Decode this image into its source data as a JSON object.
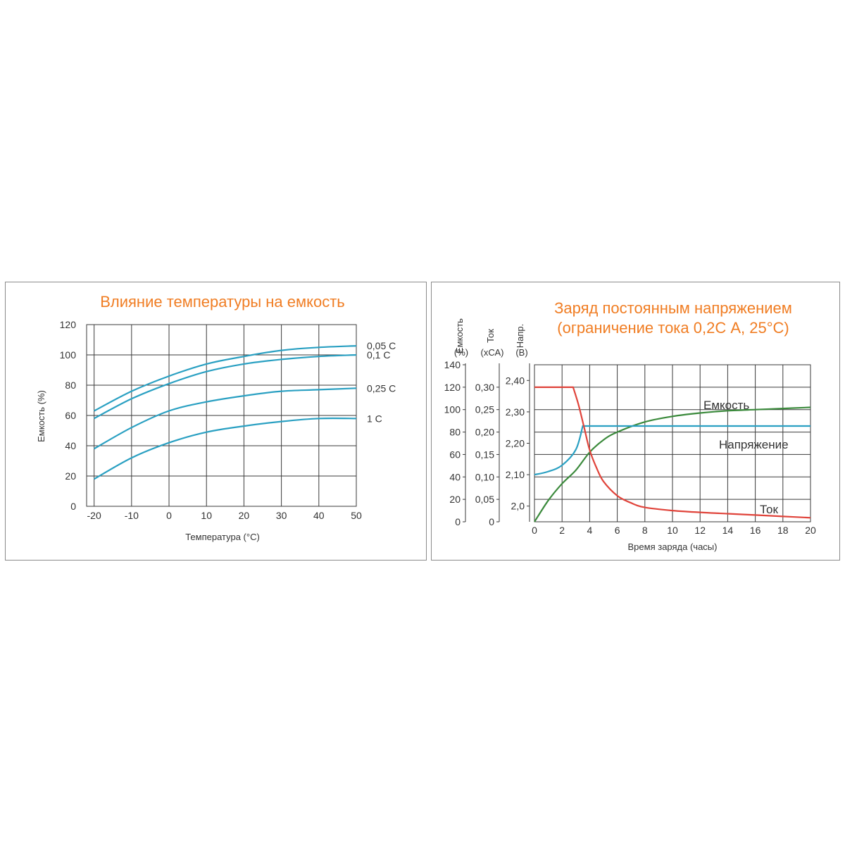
{
  "chart_data": [
    {
      "type": "line",
      "title": "Влияние температуры на емкость",
      "xlabel": "Температура (°С)",
      "ylabel": "Емкость (%)",
      "xlim": [
        -22,
        50
      ],
      "ylim": [
        0,
        120
      ],
      "x_ticks": [
        "-20",
        "-10",
        "0",
        "10",
        "20",
        "30",
        "40",
        "50"
      ],
      "y_ticks": [
        "0",
        "20",
        "40",
        "60",
        "80",
        "100",
        "120"
      ],
      "grid": true,
      "series": [
        {
          "name": "0,05 C",
          "x": [
            -20,
            -10,
            0,
            10,
            20,
            30,
            40,
            50
          ],
          "values": [
            63,
            76,
            86,
            94,
            99,
            103,
            105,
            106
          ]
        },
        {
          "name": "0,1 C",
          "x": [
            -20,
            -10,
            0,
            10,
            20,
            30,
            40,
            50
          ],
          "values": [
            58,
            71,
            81,
            89,
            94,
            97,
            99,
            100
          ]
        },
        {
          "name": "0,25 C",
          "x": [
            -20,
            -10,
            0,
            10,
            20,
            30,
            40,
            50
          ],
          "values": [
            38,
            52,
            63,
            69,
            73,
            76,
            77,
            78
          ]
        },
        {
          "name": "1 C",
          "x": [
            -20,
            -10,
            0,
            10,
            20,
            30,
            40,
            50
          ],
          "values": [
            18,
            32,
            42,
            49,
            53,
            56,
            58,
            58
          ]
        }
      ]
    },
    {
      "type": "line",
      "title": [
        "Заряд постоянным напряжением",
        "(ограничение тока 0,2С А, 25°С)"
      ],
      "xlabel": "Время заряда (часы)",
      "xlim": [
        0,
        20
      ],
      "x_ticks": [
        "0",
        "2",
        "4",
        "6",
        "8",
        "10",
        "12",
        "14",
        "16",
        "18",
        "20"
      ],
      "grid": true,
      "y_axes": [
        {
          "label": [
            "Емкость",
            "(%)"
          ],
          "range": [
            0,
            140
          ],
          "ticks": [
            "0",
            "20",
            "40",
            "60",
            "80",
            "100",
            "120",
            "140"
          ]
        },
        {
          "label": [
            "Ток",
            "(хСА)"
          ],
          "range": [
            0,
            0.35
          ],
          "ticks": [
            "0",
            "0,05",
            "0,10",
            "0,15",
            "0,20",
            "0,25",
            "0,30"
          ]
        },
        {
          "label": [
            "Напр.",
            "(В)"
          ],
          "range": [
            1.95,
            2.45
          ],
          "ticks": [
            "2,0",
            "2,10",
            "2,20",
            "2,30",
            "2,40"
          ]
        }
      ],
      "series": [
        {
          "name": "Емкость",
          "axis": 0,
          "x": [
            0,
            1,
            2,
            3,
            4,
            5,
            6,
            8,
            10,
            12,
            14,
            16,
            18,
            20
          ],
          "values": [
            0,
            19,
            34,
            46,
            62,
            73,
            80,
            89,
            94,
            97,
            99,
            100,
            101,
            102
          ]
        },
        {
          "name": "Напряжение",
          "axis": 2,
          "x": [
            0,
            1,
            2,
            3,
            3.5,
            4,
            6,
            8,
            10,
            12,
            14,
            16,
            18,
            20
          ],
          "values": [
            2.1,
            2.11,
            2.13,
            2.18,
            2.255,
            2.255,
            2.255,
            2.255,
            2.255,
            2.255,
            2.255,
            2.255,
            2.255,
            2.255
          ]
        },
        {
          "name": "Ток",
          "axis": 1,
          "x": [
            0,
            1,
            2,
            2.8,
            3.2,
            3.6,
            4,
            4.5,
            5,
            6,
            7,
            8,
            10,
            12,
            14,
            16,
            18,
            20
          ],
          "values": [
            0.3,
            0.3,
            0.3,
            0.3,
            0.26,
            0.21,
            0.16,
            0.12,
            0.09,
            0.058,
            0.042,
            0.032,
            0.025,
            0.021,
            0.018,
            0.015,
            0.012,
            0.009
          ]
        }
      ]
    }
  ]
}
